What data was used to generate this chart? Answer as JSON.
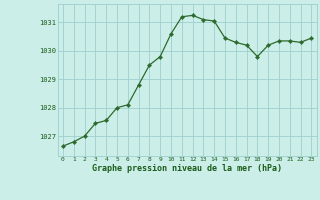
{
  "x": [
    0,
    1,
    2,
    3,
    4,
    5,
    6,
    7,
    8,
    9,
    10,
    11,
    12,
    13,
    14,
    15,
    16,
    17,
    18,
    19,
    20,
    21,
    22,
    23
  ],
  "y": [
    1026.65,
    1026.8,
    1027.0,
    1027.45,
    1027.55,
    1028.0,
    1028.1,
    1028.8,
    1029.5,
    1029.8,
    1030.6,
    1031.2,
    1031.25,
    1031.1,
    1031.05,
    1030.45,
    1030.3,
    1030.2,
    1029.8,
    1030.2,
    1030.35,
    1030.35,
    1030.3,
    1030.45
  ],
  "line_color": "#2d6a2d",
  "marker_color": "#2d6a2d",
  "bg_color": "#cceee8",
  "grid_color": "#9ecece",
  "xlabel": "Graphe pression niveau de la mer (hPa)",
  "xlabel_color": "#1a5c1a",
  "tick_color": "#1a5c1a",
  "ylim": [
    1026.3,
    1031.65
  ],
  "yticks": [
    1027,
    1028,
    1029,
    1030,
    1031
  ],
  "xticks": [
    0,
    1,
    2,
    3,
    4,
    5,
    6,
    7,
    8,
    9,
    10,
    11,
    12,
    13,
    14,
    15,
    16,
    17,
    18,
    19,
    20,
    21,
    22,
    23
  ],
  "figsize": [
    3.2,
    2.0
  ],
  "dpi": 100
}
